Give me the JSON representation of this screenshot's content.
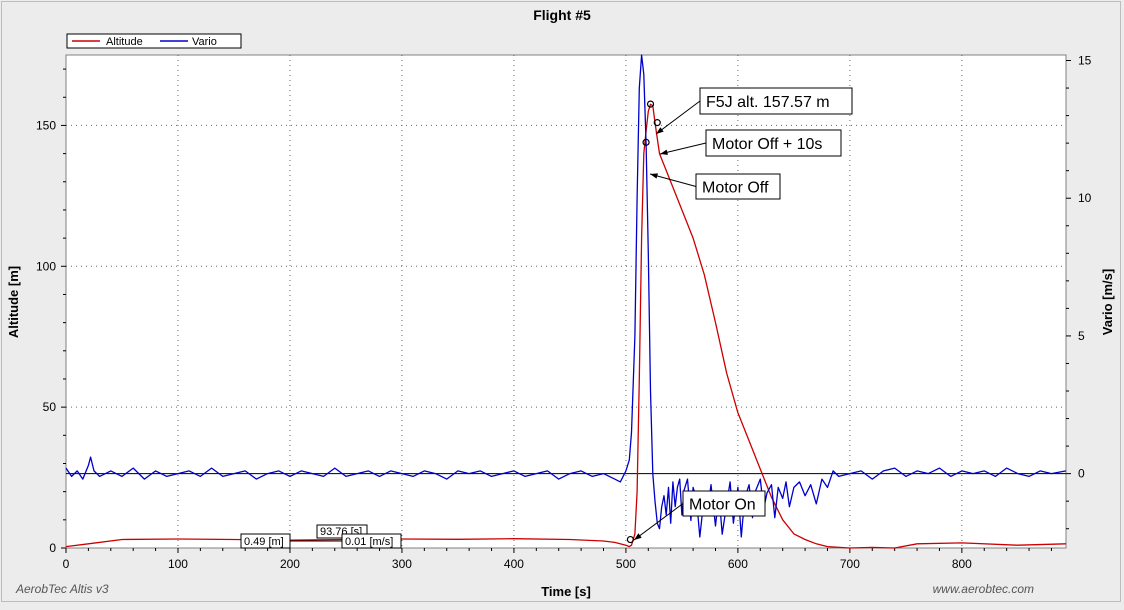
{
  "chart_data": {
    "type": "line",
    "title": "Flight #5",
    "xlabel": "Time [s]",
    "ylabel": "Altitude [m]",
    "y2label": "Vario [m/s]",
    "xlim": [
      0,
      893
    ],
    "ylim": [
      0,
      175
    ],
    "y2lim": [
      -2.7,
      15.2
    ],
    "x_ticks": [
      0,
      100,
      200,
      300,
      400,
      500,
      600,
      700,
      800
    ],
    "y_ticks": [
      0,
      50,
      100,
      150
    ],
    "y2_ticks": [
      0,
      5,
      10,
      15
    ],
    "grid": true,
    "legend_position": "top-left",
    "series": [
      {
        "name": "Altitude",
        "axis": "left",
        "color": "#cc0000",
        "x": [
          0,
          20,
          50,
          100,
          150,
          200,
          250,
          300,
          350,
          400,
          450,
          480,
          490,
          500,
          503,
          505,
          508,
          510,
          512,
          514,
          516,
          518,
          520,
          522,
          524,
          526,
          530,
          540,
          550,
          560,
          570,
          580,
          590,
          600,
          610,
          620,
          630,
          640,
          650,
          660,
          670,
          680,
          700,
          720,
          740,
          760,
          800,
          850,
          893
        ],
        "y": [
          0.5,
          1.5,
          3,
          3.2,
          3,
          2.8,
          3,
          3.2,
          3.1,
          3.3,
          3,
          2.5,
          2,
          1,
          0.5,
          1,
          5,
          20,
          60,
          110,
          140,
          148,
          155,
          157.5,
          157,
          151,
          140,
          130,
          120,
          110,
          97,
          80,
          62,
          48,
          38,
          28,
          18,
          10,
          5,
          3,
          1.5,
          0.5,
          0,
          0.2,
          0,
          1.5,
          1.8,
          1,
          1.5
        ]
      },
      {
        "name": "Vario",
        "axis": "right",
        "color": "#0000cc",
        "x": [
          0,
          5,
          10,
          15,
          20,
          22,
          25,
          30,
          40,
          50,
          60,
          70,
          80,
          90,
          100,
          110,
          120,
          130,
          140,
          150,
          160,
          170,
          180,
          190,
          200,
          210,
          220,
          230,
          240,
          250,
          260,
          270,
          280,
          290,
          300,
          310,
          320,
          330,
          340,
          350,
          360,
          370,
          380,
          390,
          400,
          410,
          420,
          430,
          440,
          450,
          460,
          470,
          480,
          490,
          495,
          500,
          503,
          505,
          508,
          510,
          512,
          514,
          516,
          518,
          520,
          522,
          524,
          526,
          528,
          530,
          532,
          534,
          536,
          538,
          540,
          542,
          544,
          546,
          548,
          550,
          552,
          555,
          558,
          560,
          563,
          566,
          570,
          573,
          576,
          580,
          583,
          586,
          590,
          593,
          596,
          600,
          603,
          606,
          610,
          613,
          616,
          620,
          623,
          626,
          630,
          633,
          636,
          640,
          643,
          646,
          650,
          655,
          660,
          665,
          670,
          675,
          680,
          685,
          690,
          700,
          710,
          720,
          730,
          740,
          750,
          760,
          770,
          780,
          790,
          800,
          810,
          820,
          830,
          840,
          850,
          860,
          870,
          880,
          893
        ],
        "y": [
          0.2,
          -0.1,
          0.1,
          -0.2,
          0.3,
          0.6,
          0.1,
          -0.1,
          0.1,
          -0.1,
          0.2,
          -0.2,
          0.1,
          -0.1,
          0,
          0.1,
          -0.1,
          0.2,
          -0.1,
          0,
          0.1,
          -0.2,
          0,
          0.1,
          -0.1,
          0.1,
          0,
          -0.1,
          0.2,
          -0.1,
          0,
          0.1,
          -0.1,
          0.1,
          0,
          -0.1,
          0.1,
          0,
          -0.2,
          0.1,
          0,
          0.1,
          -0.1,
          0,
          0.1,
          -0.1,
          0,
          0.1,
          -0.2,
          0,
          0.1,
          -0.1,
          0,
          -0.2,
          -0.3,
          0.1,
          0.5,
          1.5,
          5,
          10,
          14,
          15.2,
          14.5,
          12,
          8,
          3,
          0,
          -1,
          -1.8,
          -2,
          -1.2,
          -0.8,
          -1.5,
          -0.5,
          -1.8,
          -0.3,
          -1.2,
          -0.5,
          -0.2,
          -1.5,
          -0.6,
          -0.2,
          -1.7,
          -0.5,
          -0.9,
          -2.3,
          -0.8,
          -1.3,
          -0.4,
          -1.9,
          -0.7,
          -2.2,
          -1.1,
          -0.3,
          -1.8,
          -0.5,
          -2.3,
          -0.9,
          -0.4,
          -1.6,
          -0.6,
          -0.2,
          -1.3,
          -0.7,
          -0.4,
          -1.6,
          -0.5,
          -0.9,
          -0.3,
          -1.2,
          -0.5,
          -0.3,
          -0.8,
          -0.4,
          -1.1,
          -0.2,
          -0.5,
          0.1,
          -0.1,
          0,
          0.1,
          -0.2,
          0.1,
          0.2,
          -0.1,
          0.1,
          0,
          0.2,
          -0.1,
          0.1,
          0,
          0.1,
          -0.1,
          0.2,
          0,
          -0.1,
          0.1,
          0,
          0.1
        ]
      }
    ],
    "annotations": [
      {
        "text": "F5J alt. 157.57 m",
        "x": 522,
        "y": 157.57
      },
      {
        "text": "Motor Off + 10s",
        "x": 528,
        "y": 151
      },
      {
        "text": "Motor Off",
        "x": 518,
        "y": 144
      },
      {
        "text": "Motor On",
        "x": 504,
        "y": 3
      }
    ],
    "cursor_labels": [
      "0.49 [m]",
      "93.76 [s]",
      "0.01 [m/s]"
    ]
  },
  "footer": {
    "left": "AerobTec Altis v3",
    "right": "www.aerobtec.com"
  },
  "colors": {
    "background": "#ececec",
    "plot_area": "#ffffff",
    "altitude": "#cc0000",
    "vario": "#0000cc"
  }
}
